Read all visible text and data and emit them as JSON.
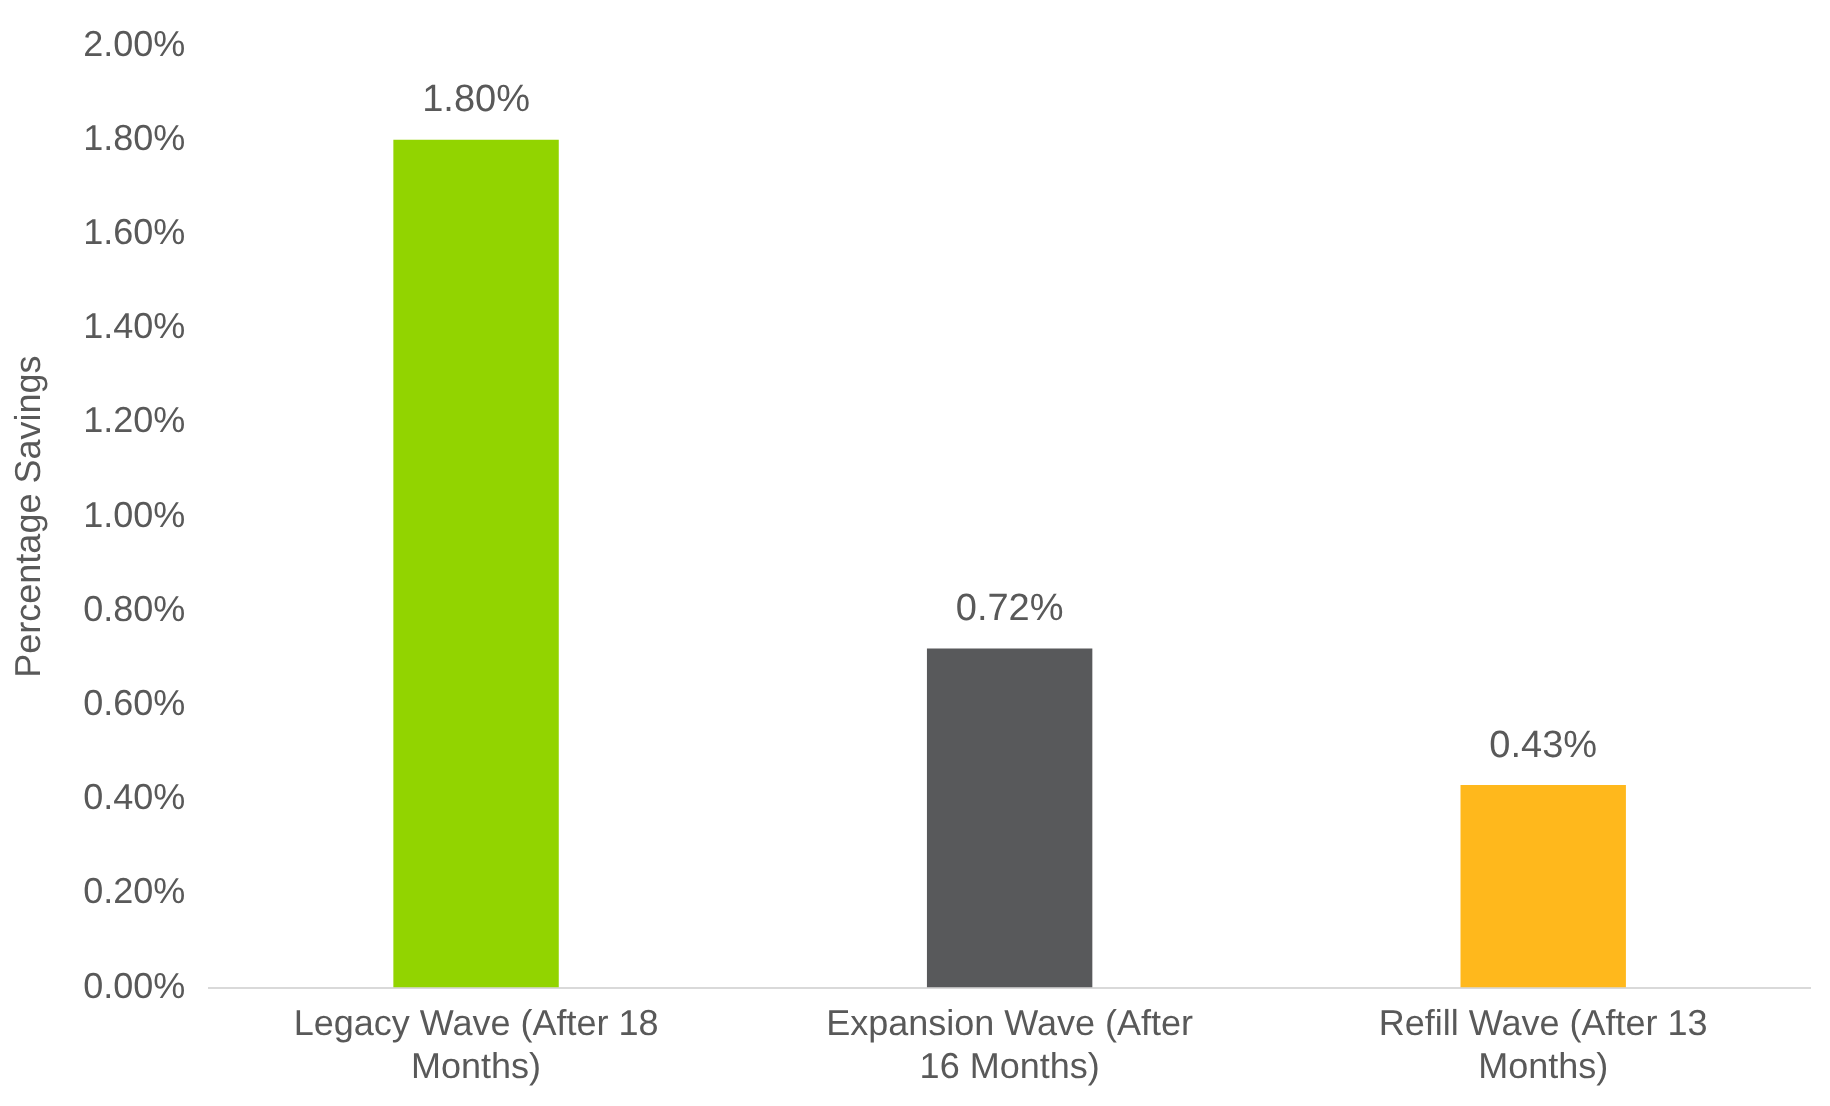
{
  "chart_data": {
    "type": "bar",
    "ylabel": "Percentage Savings",
    "categories": [
      "Legacy Wave (After 18 Months)",
      "Expansion Wave (After 16 Months)",
      "Refill Wave (After 13 Months)"
    ],
    "values": [
      1.8,
      0.72,
      0.43
    ],
    "colors": [
      "#92d400",
      "#58595b",
      "#ffb81c"
    ],
    "value_labels": [
      "1.80%",
      "0.72%",
      "0.43%"
    ],
    "ylim": [
      0,
      2
    ],
    "yticks": [
      {
        "value": 0,
        "label": "0.00%"
      },
      {
        "value": 0.2,
        "label": "0.20%"
      },
      {
        "value": 0.4,
        "label": "0.40%"
      },
      {
        "value": 0.6,
        "label": "0.60%"
      },
      {
        "value": 0.8,
        "label": "0.80%"
      },
      {
        "value": 1,
        "label": "1.00%"
      },
      {
        "value": 1.2,
        "label": "1.20%"
      },
      {
        "value": 1.4,
        "label": "1.40%"
      },
      {
        "value": 1.6,
        "label": "1.60%"
      },
      {
        "value": 1.8,
        "label": "1.80%"
      },
      {
        "value": 2,
        "label": "2.00%"
      }
    ]
  }
}
